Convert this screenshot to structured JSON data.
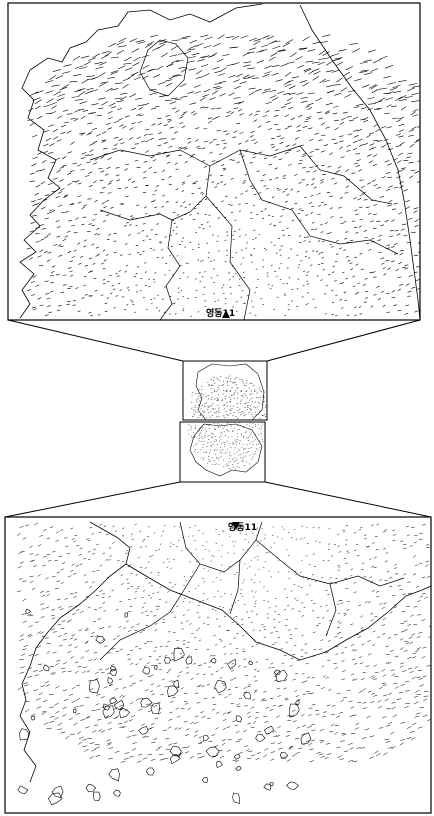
{
  "figure": {
    "top_panel": {
      "site_label": "영동11",
      "marker": "radar-site-triangle"
    },
    "bottom_panel": {
      "site_label": "영동11",
      "marker": "radar-site-triangle"
    }
  },
  "colors": {
    "ink": "#000000",
    "background": "#ffffff"
  }
}
